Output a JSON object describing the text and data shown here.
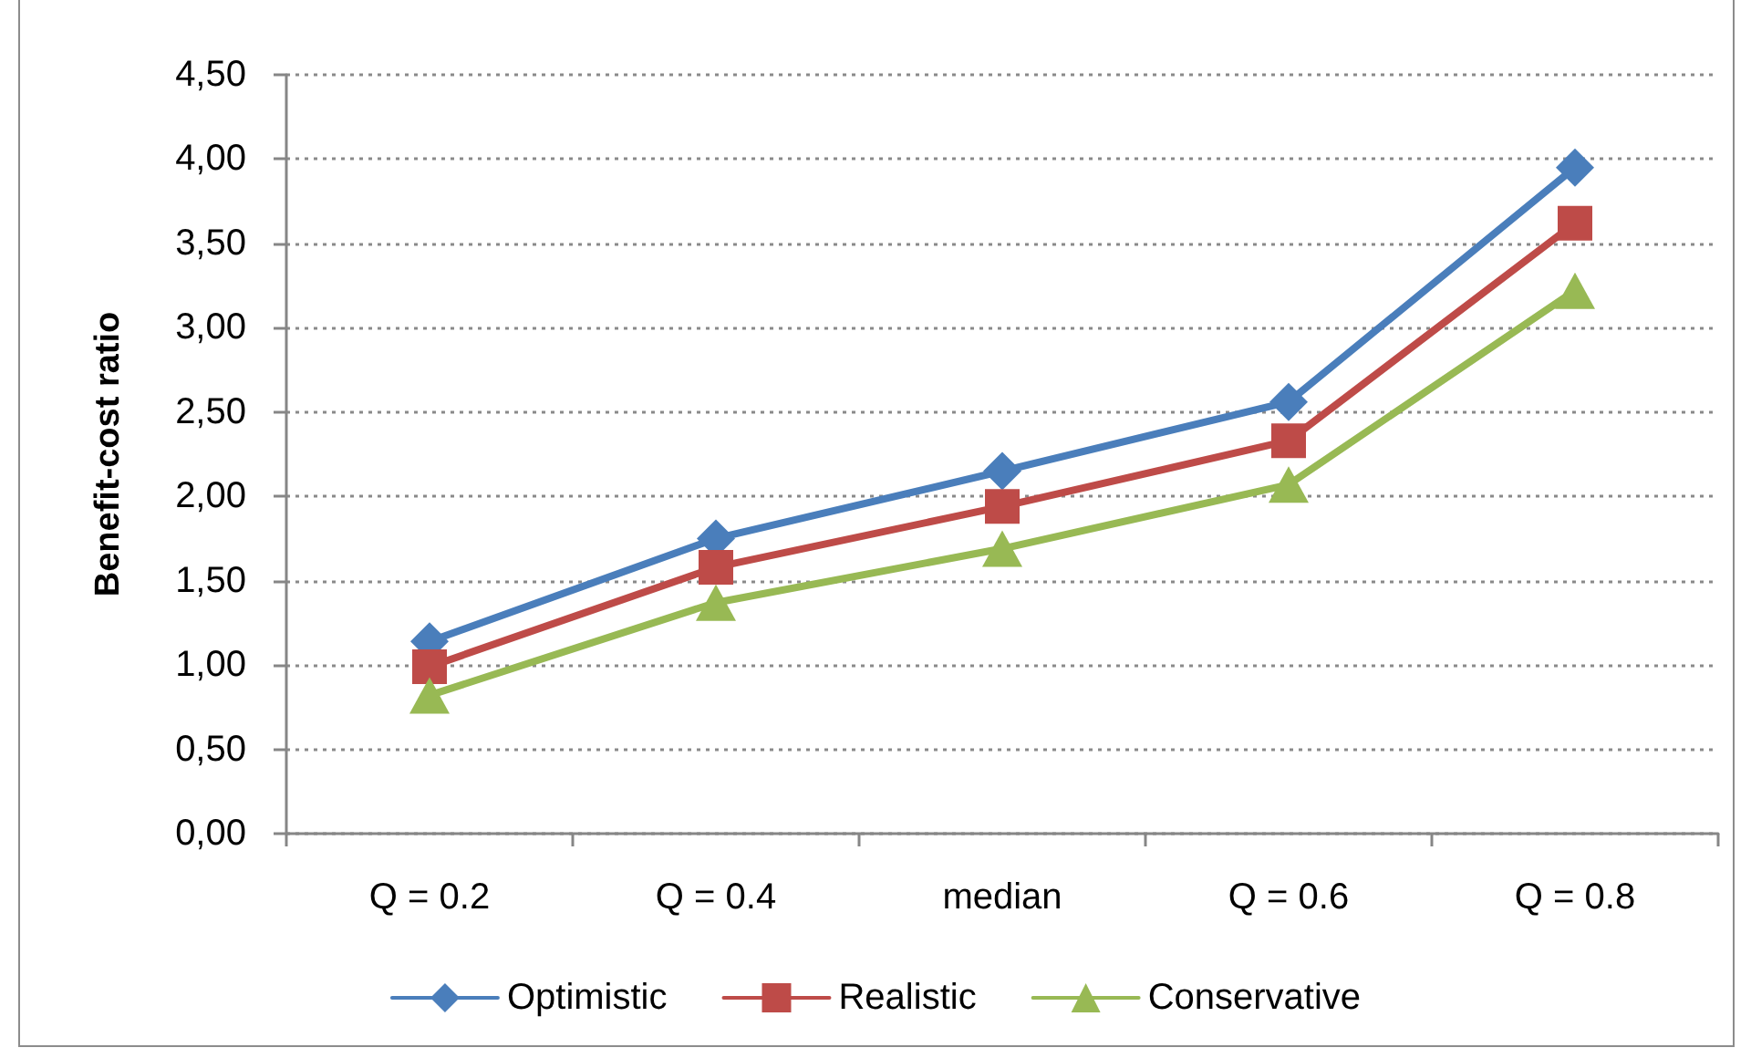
{
  "chart_data": {
    "type": "line",
    "ylabel": "Benefit-cost ratio",
    "categories": [
      "Q = 0.2",
      "Q = 0.4",
      "median",
      "Q = 0.6",
      "Q = 0.8"
    ],
    "series": [
      {
        "name": "Optimistic",
        "color": "#4a7ebb",
        "marker": "diamond",
        "values": [
          1.14,
          1.75,
          2.15,
          2.56,
          3.95
        ]
      },
      {
        "name": "Realistic",
        "color": "#be4b48",
        "marker": "square",
        "values": [
          0.99,
          1.58,
          1.94,
          2.33,
          3.62
        ]
      },
      {
        "name": "Conservative",
        "color": "#98b954",
        "marker": "triangle",
        "values": [
          0.82,
          1.37,
          1.69,
          2.07,
          3.22
        ]
      }
    ],
    "ylim": [
      0,
      4.5
    ],
    "yticks": [
      {
        "value": 0,
        "label": "0,00"
      },
      {
        "value": 0.5,
        "label": "0,50"
      },
      {
        "value": 1,
        "label": "1,00"
      },
      {
        "value": 1.5,
        "label": "1,50"
      },
      {
        "value": 2,
        "label": "2,00"
      },
      {
        "value": 2.5,
        "label": "2,50"
      },
      {
        "value": 3,
        "label": "3,00"
      },
      {
        "value": 3.5,
        "label": "3,50"
      },
      {
        "value": 4,
        "label": "4,00"
      },
      {
        "value": 4.5,
        "label": "4,50"
      }
    ],
    "grid": "y",
    "legend": "bottom",
    "line_style": "solid"
  }
}
